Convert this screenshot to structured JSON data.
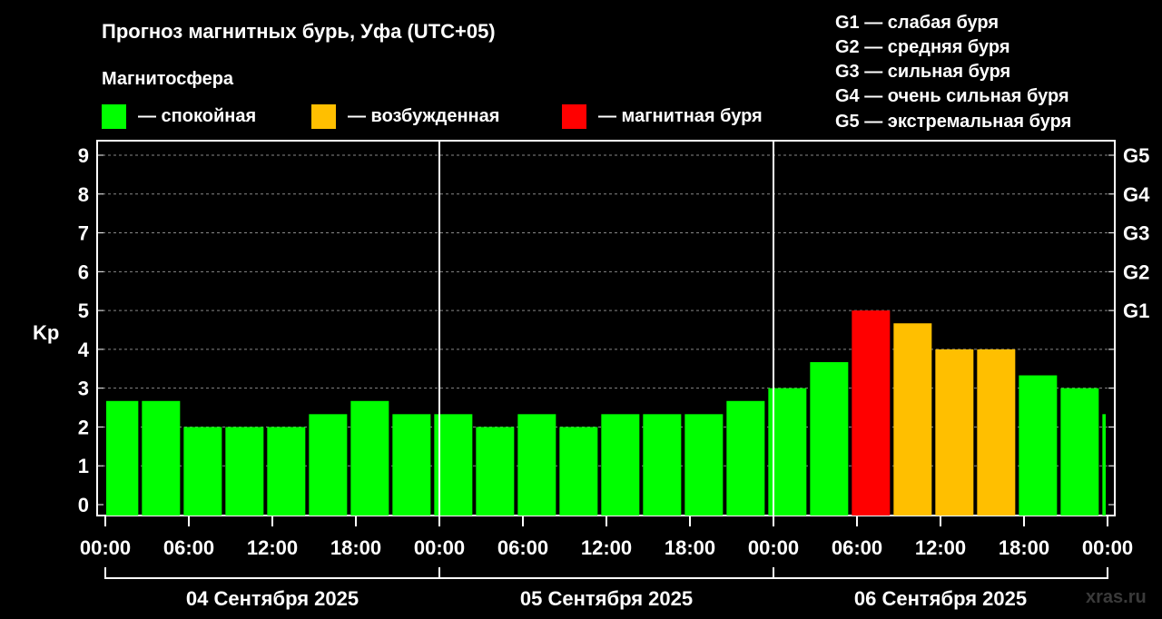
{
  "title": "Прогноз магнитных бурь, Уфа (UTC+05)",
  "legend": {
    "heading": "Магнитосфера",
    "items": [
      {
        "label": "— спокойная",
        "color": "#00ff00"
      },
      {
        "label": "— возбужденная",
        "color": "#ffbf00"
      },
      {
        "label": "— магнитная буря",
        "color": "#ff0000"
      }
    ]
  },
  "gscale": [
    {
      "label": "G1 — слабая буря"
    },
    {
      "label": "G2 — средняя буря"
    },
    {
      "label": "G3 — сильная буря"
    },
    {
      "label": "G4 — очень сильная буря"
    },
    {
      "label": "G5 — экстремальная буря"
    }
  ],
  "watermark": "xras.ru",
  "chart_data": {
    "type": "bar",
    "ylabel": "Kp",
    "ylim": [
      0,
      9
    ],
    "yticks": [
      0,
      1,
      2,
      3,
      4,
      5,
      6,
      7,
      8,
      9
    ],
    "right_axis": [
      {
        "value": 5,
        "label": "G1"
      },
      {
        "value": 6,
        "label": "G2"
      },
      {
        "value": 7,
        "label": "G3"
      },
      {
        "value": 8,
        "label": "G4"
      },
      {
        "value": 9,
        "label": "G5"
      }
    ],
    "grid": "horizontal dashed",
    "xticks": [
      "00:00",
      "06:00",
      "12:00",
      "18:00",
      "00:00",
      "06:00",
      "12:00",
      "18:00",
      "00:00",
      "06:00",
      "12:00",
      "18:00",
      "00:00"
    ],
    "days": [
      "04 Сентября 2025",
      "05 Сентября 2025",
      "06 Сентября 2025"
    ],
    "interval_hours": 3,
    "time_offset_hours": 1,
    "series": [
      {
        "name": "Kp",
        "values": [
          2.67,
          2.67,
          2.0,
          2.0,
          2.0,
          2.33,
          2.67,
          2.33,
          2.33,
          2.0,
          2.33,
          2.0,
          2.33,
          2.33,
          2.33,
          2.67,
          3.0,
          3.67,
          5.0,
          4.67,
          4.0,
          4.0,
          3.33,
          3.0,
          2.33
        ],
        "status": [
          "quiet",
          "quiet",
          "quiet",
          "quiet",
          "quiet",
          "quiet",
          "quiet",
          "quiet",
          "quiet",
          "quiet",
          "quiet",
          "quiet",
          "quiet",
          "quiet",
          "quiet",
          "quiet",
          "quiet",
          "quiet",
          "storm",
          "active",
          "active",
          "active",
          "quiet",
          "quiet",
          "quiet"
        ]
      }
    ]
  }
}
